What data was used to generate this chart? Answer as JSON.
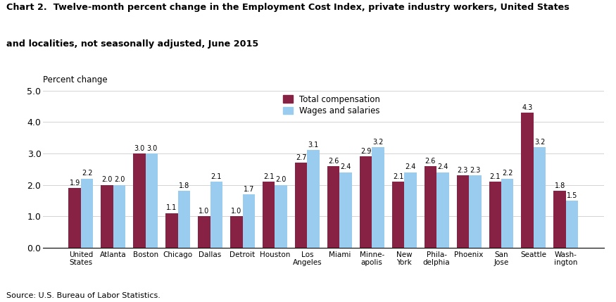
{
  "title_line1": "Chart 2.  Twelve-month percent change in the Employment Cost Index, private industry workers, United States",
  "title_line2": "and localities, not seasonally adjusted, June 2015",
  "ylabel": "Percent change",
  "source": "Source: U.S. Bureau of Labor Statistics.",
  "categories": [
    "United\nStates",
    "Atlanta",
    "Boston",
    "Chicago",
    "Dallas",
    "Detroit",
    "Houston",
    "Los\nAngeles",
    "Miami",
    "Minne-\napolis",
    "New\nYork",
    "Phila-\ndelphia",
    "Phoenix",
    "San\nJose",
    "Seattle",
    "Wash-\nington"
  ],
  "total_compensation": [
    1.9,
    2.0,
    3.0,
    1.1,
    1.0,
    1.0,
    2.1,
    2.7,
    2.6,
    2.9,
    2.1,
    2.6,
    2.3,
    2.1,
    4.3,
    1.8
  ],
  "wages_and_salaries": [
    2.2,
    2.0,
    3.0,
    1.8,
    2.1,
    1.7,
    2.0,
    3.1,
    2.4,
    3.2,
    2.4,
    2.4,
    2.3,
    2.2,
    3.2,
    1.5
  ],
  "color_total": "#882244",
  "color_wages": "#99CCEE",
  "ylim": [
    0.0,
    5.0
  ],
  "yticks": [
    0.0,
    1.0,
    2.0,
    3.0,
    4.0,
    5.0
  ],
  "legend_labels": [
    "Total compensation",
    "Wages and salaries"
  ],
  "bar_width": 0.38
}
